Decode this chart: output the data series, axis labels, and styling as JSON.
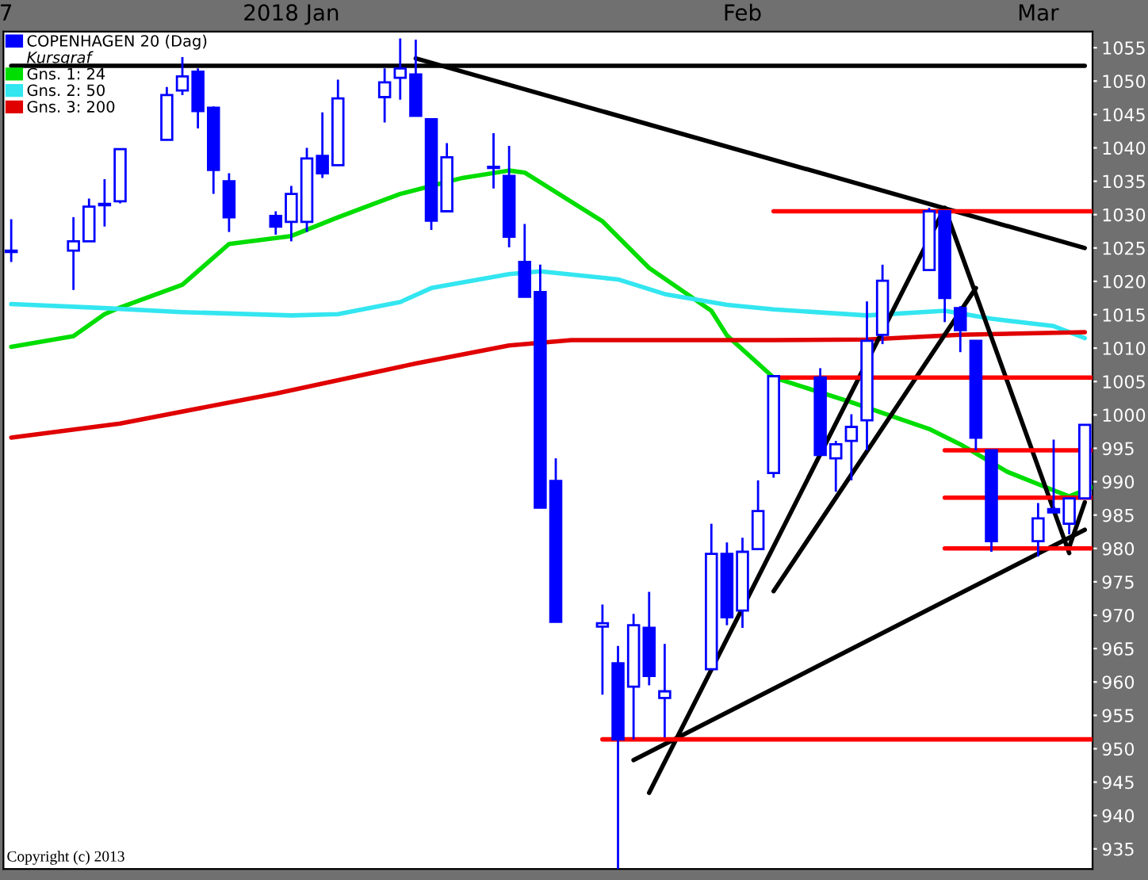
{
  "chart_data": {
    "type": "candlestick",
    "series": [
      {
        "name": "COPENHAGEN 20 (Dag)",
        "color": "#0000ff",
        "x": [
          "2017-12-29",
          "2018-01-02",
          "2018-01-03",
          "2018-01-04",
          "2018-01-05",
          "2018-01-08",
          "2018-01-09",
          "2018-01-10",
          "2018-01-11",
          "2018-01-12",
          "2018-01-15",
          "2018-01-16",
          "2018-01-17",
          "2018-01-18",
          "2018-01-19",
          "2018-01-22",
          "2018-01-23",
          "2018-01-24",
          "2018-01-25",
          "2018-01-26",
          "2018-01-29",
          "2018-01-30",
          "2018-01-31",
          "2018-02-01",
          "2018-02-02",
          "2018-02-05",
          "2018-02-06",
          "2018-02-07",
          "2018-02-08",
          "2018-02-09",
          "2018-02-12",
          "2018-02-13",
          "2018-02-14",
          "2018-02-15",
          "2018-02-16",
          "2018-02-19",
          "2018-02-20",
          "2018-02-21",
          "2018-02-22",
          "2018-02-23",
          "2018-02-26",
          "2018-02-27",
          "2018-02-28",
          "2018-03-01",
          "2018-03-02",
          "2018-03-05",
          "2018-03-06",
          "2018-03-07",
          "2018-03-08"
        ],
        "ohlc": [
          [
            1024.6,
            1029.3,
            1022.9,
            1024.4
          ],
          [
            1024.6,
            1029.6,
            1018.7,
            1026.0
          ],
          [
            1026.0,
            1032.4,
            1026.0,
            1031.2
          ],
          [
            1031.6,
            1035.3,
            1028.2,
            1031.4
          ],
          [
            1032.0,
            1039.8,
            1031.7,
            1039.8
          ],
          [
            1041.2,
            1049.1,
            1041.2,
            1047.9
          ],
          [
            1048.6,
            1053.6,
            1047.9,
            1050.7
          ],
          [
            1051.4,
            1051.9,
            1042.9,
            1045.5
          ],
          [
            1046.0,
            1046.2,
            1033.1,
            1036.7
          ],
          [
            1035.0,
            1036.2,
            1027.4,
            1029.6
          ],
          [
            1029.8,
            1030.5,
            1027.0,
            1028.2
          ],
          [
            1028.9,
            1034.3,
            1026.0,
            1033.1
          ],
          [
            1028.9,
            1040.0,
            1027.4,
            1038.4
          ],
          [
            1038.8,
            1045.3,
            1035.5,
            1036.2
          ],
          [
            1037.4,
            1050.2,
            1037.4,
            1047.4
          ],
          [
            1047.6,
            1051.9,
            1043.8,
            1049.8
          ],
          [
            1050.5,
            1056.4,
            1047.2,
            1051.9
          ],
          [
            1051.0,
            1056.2,
            1044.8,
            1044.8
          ],
          [
            1044.3,
            1044.3,
            1027.7,
            1029.1
          ],
          [
            1030.5,
            1040.7,
            1030.5,
            1038.6
          ],
          [
            1037.1,
            1042.2,
            1033.9,
            1037.0
          ],
          [
            1035.8,
            1040.3,
            1025.1,
            1026.7
          ],
          [
            1022.9,
            1028.6,
            1017.7,
            1017.7
          ],
          [
            1018.4,
            1022.5,
            986.1,
            986.1
          ],
          [
            990.1,
            993.5,
            969.0,
            969.0
          ],
          [
            968.3,
            971.6,
            958.1,
            968.8
          ],
          [
            962.8,
            965.4,
            932.0,
            951.4
          ],
          [
            959.3,
            970.2,
            951.4,
            968.5
          ],
          [
            968.1,
            973.5,
            959.5,
            960.9
          ],
          [
            957.6,
            965.7,
            951.7,
            958.6
          ],
          [
            961.9,
            983.7,
            961.9,
            979.2
          ],
          [
            979.2,
            980.9,
            968.5,
            969.7
          ],
          [
            970.7,
            981.6,
            968.1,
            979.5
          ],
          [
            979.9,
            990.2,
            979.9,
            985.6
          ],
          [
            991.3,
            1005.8,
            990.6,
            1005.8
          ],
          [
            1005.6,
            1007.0,
            994.0,
            994.0
          ],
          [
            993.5,
            996.1,
            988.5,
            995.6
          ],
          [
            996.1,
            1000.1,
            990.2,
            998.2
          ],
          [
            999.2,
            1017.0,
            994.7,
            1011.1
          ],
          [
            1012.0,
            1022.5,
            1010.6,
            1020.1
          ],
          [
            1021.7,
            1031.0,
            1021.7,
            1030.5
          ],
          [
            1030.5,
            1030.5,
            1013.9,
            1017.5
          ],
          [
            1016.0,
            1016.3,
            1009.4,
            1012.7
          ],
          [
            1011.1,
            1011.1,
            994.7,
            996.6
          ],
          [
            994.7,
            994.7,
            979.5,
            981.1
          ],
          [
            981.1,
            986.8,
            978.8,
            984.5
          ],
          [
            985.9,
            996.3,
            985.4,
            985.4
          ],
          [
            983.7,
            987.5,
            982.1,
            987.5
          ],
          [
            987.5,
            998.5,
            987.5,
            998.5
          ]
        ]
      },
      {
        "name": "Gns. 1: 24",
        "type": "line",
        "color": "#00dd00",
        "x": [
          "2017-12-29",
          "2018-01-02",
          "2018-01-04",
          "2018-01-05",
          "2018-01-09",
          "2018-01-12",
          "2018-01-16",
          "2018-01-19",
          "2018-01-23",
          "2018-01-27",
          "2018-01-30",
          "2018-01-31",
          "2018-02-05",
          "2018-02-08",
          "2018-02-12",
          "2018-02-13",
          "2018-02-16",
          "2018-02-21",
          "2018-02-26",
          "2018-02-28",
          "2018-03-03",
          "2018-03-06",
          "2018-03-07",
          "2018-03-08T12:00"
        ],
        "values": [
          1010.2,
          1011.8,
          1015.1,
          1016.1,
          1019.5,
          1025.6,
          1026.8,
          1029.6,
          1033.1,
          1035.5,
          1036.6,
          1036.3,
          1029.0,
          1022.0,
          1015.6,
          1011.9,
          1005.6,
          1001.9,
          997.9,
          995.6,
          991.5,
          988.7,
          987.8,
          989.2
        ]
      },
      {
        "name": "Gns. 2: 50",
        "type": "line",
        "color": "#33e6f0",
        "x": [
          "2017-12-29",
          "2018-01-04",
          "2018-01-09",
          "2018-01-16",
          "2018-01-19",
          "2018-01-23",
          "2018-01-25",
          "2018-01-30",
          "2018-02-01",
          "2018-02-06",
          "2018-02-09",
          "2018-02-13",
          "2018-02-16",
          "2018-02-22",
          "2018-02-27",
          "2018-03-02",
          "2018-03-06",
          "2018-03-08"
        ],
        "values": [
          1016.6,
          1016.0,
          1015.4,
          1014.9,
          1015.1,
          1016.9,
          1019.0,
          1021.1,
          1021.5,
          1020.3,
          1018.1,
          1016.5,
          1015.8,
          1014.9,
          1015.6,
          1014.4,
          1013.3,
          1011.5
        ]
      },
      {
        "name": "Gns. 3: 200",
        "type": "line",
        "color": "#e00000",
        "x": [
          "2017-12-29",
          "2018-01-05",
          "2018-01-15",
          "2018-01-24",
          "2018-01-30",
          "2018-02-03",
          "2018-02-06",
          "2018-02-16",
          "2018-02-22",
          "2018-02-28",
          "2018-03-08"
        ],
        "values": [
          996.6,
          998.7,
          1003.2,
          1007.7,
          1010.4,
          1011.2,
          1011.2,
          1011.2,
          1011.3,
          1012.0,
          1012.4
        ]
      },
      {
        "type": "line",
        "color": "#000000",
        "x": [
          "2017-12-29",
          "2018-03-08"
        ],
        "values": [
          1052.3,
          1052.3
        ]
      },
      {
        "type": "line",
        "color": "#000000",
        "x": [
          "2018-01-24",
          "2018-03-08"
        ],
        "values": [
          1053.4,
          1025.0
        ]
      },
      {
        "type": "line",
        "color": "#000000",
        "x": [
          "2018-02-07",
          "2018-03-08"
        ],
        "values": [
          948.3,
          982.8
        ]
      },
      {
        "type": "line",
        "color": "#000000",
        "x": [
          "2018-02-08",
          "2018-02-27"
        ],
        "values": [
          943.4,
          1031.0
        ]
      },
      {
        "type": "line",
        "color": "#000000",
        "x": [
          "2018-02-16",
          "2018-03-01"
        ],
        "values": [
          973.6,
          1019.0
        ]
      },
      {
        "type": "line",
        "color": "#000000",
        "x": [
          "2018-02-27",
          "2018-03-07"
        ],
        "values": [
          1031.0,
          979.3
        ]
      },
      {
        "type": "line",
        "color": "#000000",
        "x": [
          "2018-03-07",
          "2018-03-08"
        ],
        "values": [
          980.2,
          986.9
        ]
      },
      {
        "type": "line",
        "color": "#ff0000",
        "x": [
          "2018-02-16",
          "2018-03-08T12:00"
        ],
        "values": [
          1030.5,
          1030.5
        ]
      },
      {
        "type": "line",
        "color": "#ff0000",
        "x": [
          "2018-02-16T09:00",
          "2018-03-08T12:00"
        ],
        "values": [
          1005.6,
          1005.6
        ]
      },
      {
        "type": "line",
        "color": "#ff0000",
        "x": [
          "2018-02-27",
          "2018-03-08T12:00"
        ],
        "values": [
          994.7,
          994.7
        ]
      },
      {
        "type": "line",
        "color": "#ff0000",
        "x": [
          "2018-02-27",
          "2018-03-08T12:00"
        ],
        "values": [
          987.6,
          987.6
        ]
      },
      {
        "type": "line",
        "color": "#ff0000",
        "x": [
          "2018-02-27",
          "2018-03-08T12:00"
        ],
        "values": [
          980.0,
          980.0
        ]
      },
      {
        "type": "line",
        "color": "#ff0000",
        "x": [
          "2018-02-05",
          "2018-03-08T12:00"
        ],
        "values": [
          951.4,
          951.4
        ]
      }
    ],
    "xlim": [
      "2017-12-28T12:00",
      "2018-03-08T12:00"
    ],
    "xticks": [
      {
        "value": "2017-12-28T16:00",
        "label": "7"
      },
      {
        "value": "2018-01-16",
        "label": "2018 Jan"
      },
      {
        "value": "2018-02-14",
        "label": "Feb"
      },
      {
        "value": "2018-03-05",
        "label": "Mar"
      }
    ],
    "ylim": [
      932,
      1057.4
    ],
    "yticks": [
      935,
      940,
      945,
      950,
      955,
      960,
      965,
      970,
      975,
      980,
      985,
      990,
      995,
      1000,
      1005,
      1010,
      1015,
      1020,
      1025,
      1030,
      1035,
      1040,
      1045,
      1050,
      1055
    ],
    "annotations": [
      "Kursgraf",
      "Copyright (c) 2013"
    ],
    "legend": "top left",
    "grid": false
  }
}
